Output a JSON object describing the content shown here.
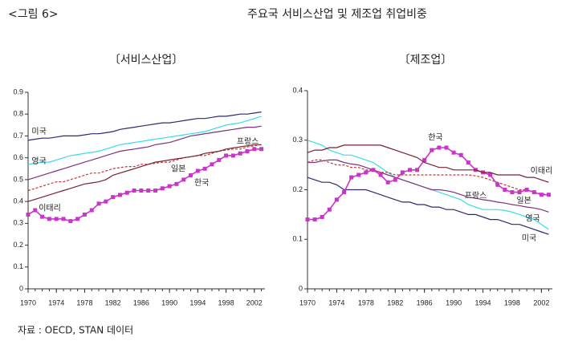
{
  "header": {
    "figure_label": "<그림 6>",
    "title": "주요국 서비스산업 및 제조업 취업비중"
  },
  "source": "자료 : OECD, STAN 데이터",
  "chart_data": [
    {
      "type": "line",
      "title": "〔서비스산업〕",
      "x": [
        1970,
        1971,
        1972,
        1973,
        1974,
        1975,
        1976,
        1977,
        1978,
        1979,
        1980,
        1981,
        1982,
        1983,
        1984,
        1985,
        1986,
        1987,
        1988,
        1989,
        1990,
        1991,
        1992,
        1993,
        1994,
        1995,
        1996,
        1997,
        1998,
        1999,
        2000,
        2001,
        2002,
        2003
      ],
      "xlim": [
        1970,
        2003.5
      ],
      "xticks": [
        1970,
        1974,
        1978,
        1982,
        1986,
        1990,
        1994,
        1998,
        2002
      ],
      "ylim": [
        0,
        0.9
      ],
      "yticks": [
        0,
        0.1,
        0.2,
        0.3,
        0.4,
        0.5,
        0.6,
        0.7,
        0.8,
        0.9
      ],
      "series": [
        {
          "name": "미국",
          "color": "#2b2b6e",
          "values": [
            0.68,
            0.685,
            0.69,
            0.69,
            0.695,
            0.7,
            0.7,
            0.7,
            0.705,
            0.71,
            0.71,
            0.715,
            0.72,
            0.73,
            0.735,
            0.74,
            0.745,
            0.75,
            0.755,
            0.76,
            0.76,
            0.765,
            0.77,
            0.775,
            0.78,
            0.78,
            0.785,
            0.79,
            0.79,
            0.795,
            0.8,
            0.8,
            0.805,
            0.81
          ]
        },
        {
          "name": "영국",
          "color": "#33dde8",
          "values": [
            0.57,
            0.575,
            0.58,
            0.58,
            0.59,
            0.6,
            0.61,
            0.615,
            0.62,
            0.625,
            0.63,
            0.64,
            0.65,
            0.66,
            0.665,
            0.67,
            0.675,
            0.68,
            0.685,
            0.69,
            0.695,
            0.7,
            0.705,
            0.71,
            0.715,
            0.72,
            0.73,
            0.74,
            0.75,
            0.755,
            0.76,
            0.77,
            0.78,
            0.79
          ]
        },
        {
          "name": "프랑스",
          "color": "#80307f",
          "values": [
            0.5,
            0.51,
            0.52,
            0.53,
            0.54,
            0.55,
            0.56,
            0.57,
            0.58,
            0.59,
            0.6,
            0.61,
            0.62,
            0.63,
            0.635,
            0.64,
            0.645,
            0.65,
            0.66,
            0.665,
            0.67,
            0.68,
            0.69,
            0.7,
            0.705,
            0.71,
            0.715,
            0.72,
            0.725,
            0.73,
            0.735,
            0.74,
            0.74,
            0.745
          ]
        },
        {
          "name": "일본",
          "color": "#cc3333",
          "dashed": true,
          "values": [
            0.45,
            0.46,
            0.47,
            0.48,
            0.49,
            0.49,
            0.5,
            0.51,
            0.52,
            0.53,
            0.53,
            0.54,
            0.55,
            0.555,
            0.56,
            0.56,
            0.57,
            0.57,
            0.575,
            0.58,
            0.58,
            0.59,
            0.6,
            0.605,
            0.61,
            0.61,
            0.62,
            0.63,
            0.635,
            0.64,
            0.64,
            0.65,
            0.655,
            0.66
          ]
        },
        {
          "name": "한국",
          "color": "#cc33cc",
          "marker": "square",
          "values": [
            0.34,
            0.36,
            0.33,
            0.32,
            0.32,
            0.32,
            0.31,
            0.32,
            0.34,
            0.36,
            0.39,
            0.4,
            0.42,
            0.43,
            0.44,
            0.45,
            0.45,
            0.45,
            0.45,
            0.46,
            0.47,
            0.48,
            0.5,
            0.52,
            0.54,
            0.55,
            0.57,
            0.59,
            0.61,
            0.61,
            0.62,
            0.63,
            0.64,
            0.64
          ]
        },
        {
          "name": "이태리",
          "color": "#7a2030",
          "values": [
            0.4,
            0.41,
            0.42,
            0.43,
            0.44,
            0.45,
            0.46,
            0.47,
            0.48,
            0.485,
            0.49,
            0.5,
            0.52,
            0.53,
            0.54,
            0.55,
            0.56,
            0.57,
            0.58,
            0.585,
            0.59,
            0.595,
            0.6,
            0.605,
            0.61,
            0.62,
            0.625,
            0.63,
            0.64,
            0.645,
            0.65,
            0.655,
            0.66,
            0.66
          ]
        }
      ]
    },
    {
      "type": "line",
      "title": "〔제조업〕",
      "x": [
        1970,
        1971,
        1972,
        1973,
        1974,
        1975,
        1976,
        1977,
        1978,
        1979,
        1980,
        1981,
        1982,
        1983,
        1984,
        1985,
        1986,
        1987,
        1988,
        1989,
        1990,
        1991,
        1992,
        1993,
        1994,
        1995,
        1996,
        1997,
        1998,
        1999,
        2000,
        2001,
        2002,
        2003
      ],
      "xlim": [
        1970,
        2003.5
      ],
      "xticks": [
        1970,
        1974,
        1978,
        1982,
        1986,
        1990,
        1994,
        1998,
        2002
      ],
      "ylim": [
        0,
        0.4
      ],
      "yticks": [
        0,
        0.1,
        0.2,
        0.3,
        0.4
      ],
      "series": [
        {
          "name": "미국",
          "color": "#2b2b6e",
          "values": [
            0.225,
            0.22,
            0.215,
            0.215,
            0.21,
            0.2,
            0.2,
            0.2,
            0.2,
            0.195,
            0.19,
            0.185,
            0.18,
            0.175,
            0.175,
            0.17,
            0.17,
            0.165,
            0.165,
            0.16,
            0.16,
            0.155,
            0.15,
            0.15,
            0.145,
            0.14,
            0.14,
            0.135,
            0.13,
            0.13,
            0.125,
            0.12,
            0.115,
            0.11
          ]
        },
        {
          "name": "영국",
          "color": "#33dde8",
          "values": [
            0.3,
            0.295,
            0.29,
            0.28,
            0.275,
            0.27,
            0.27,
            0.265,
            0.26,
            0.255,
            0.245,
            0.235,
            0.225,
            0.22,
            0.215,
            0.21,
            0.205,
            0.2,
            0.195,
            0.19,
            0.185,
            0.18,
            0.17,
            0.165,
            0.16,
            0.16,
            0.16,
            0.158,
            0.155,
            0.15,
            0.145,
            0.14,
            0.13,
            0.12
          ]
        },
        {
          "name": "프랑스",
          "color": "#80307f",
          "values": [
            0.255,
            0.255,
            0.258,
            0.26,
            0.26,
            0.255,
            0.252,
            0.25,
            0.245,
            0.24,
            0.235,
            0.23,
            0.225,
            0.22,
            0.215,
            0.21,
            0.205,
            0.2,
            0.2,
            0.198,
            0.195,
            0.19,
            0.185,
            0.183,
            0.18,
            0.178,
            0.175,
            0.173,
            0.17,
            0.168,
            0.165,
            0.163,
            0.16,
            0.155
          ]
        },
        {
          "name": "일본",
          "color": "#cc3333",
          "dashed": true,
          "values": [
            0.255,
            0.26,
            0.26,
            0.255,
            0.25,
            0.25,
            0.245,
            0.245,
            0.24,
            0.24,
            0.235,
            0.235,
            0.23,
            0.23,
            0.23,
            0.23,
            0.23,
            0.23,
            0.23,
            0.23,
            0.23,
            0.23,
            0.23,
            0.228,
            0.225,
            0.22,
            0.215,
            0.21,
            0.205,
            0.2,
            0.2,
            0.195,
            0.192,
            0.19
          ]
        },
        {
          "name": "한국",
          "color": "#cc33cc",
          "marker": "square",
          "values": [
            0.14,
            0.14,
            0.145,
            0.16,
            0.18,
            0.195,
            0.225,
            0.23,
            0.235,
            0.24,
            0.23,
            0.215,
            0.22,
            0.235,
            0.24,
            0.24,
            0.26,
            0.28,
            0.285,
            0.285,
            0.275,
            0.27,
            0.255,
            0.24,
            0.235,
            0.23,
            0.21,
            0.2,
            0.195,
            0.195,
            0.2,
            0.195,
            0.19,
            0.19
          ]
        },
        {
          "name": "이태리",
          "color": "#7a2030",
          "values": [
            0.275,
            0.28,
            0.28,
            0.285,
            0.285,
            0.29,
            0.29,
            0.29,
            0.29,
            0.29,
            0.29,
            0.285,
            0.28,
            0.275,
            0.27,
            0.265,
            0.255,
            0.25,
            0.245,
            0.245,
            0.24,
            0.24,
            0.24,
            0.24,
            0.235,
            0.235,
            0.23,
            0.23,
            0.23,
            0.23,
            0.225,
            0.225,
            0.22,
            0.215
          ]
        }
      ]
    }
  ]
}
